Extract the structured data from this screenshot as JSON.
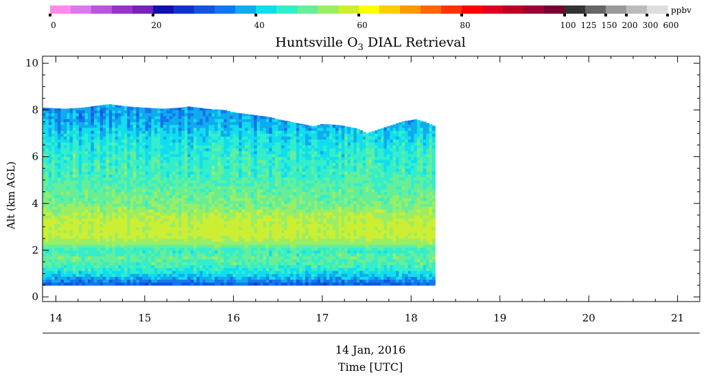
{
  "chart_data": {
    "type": "heatmap",
    "title_main": "Huntsville O",
    "title_sub": "3",
    "title_rest": " DIAL Retrieval",
    "ylabel": "Alt (km AGL)",
    "xlabel_date": "14 Jan, 2016",
    "xlabel": "Time [UTC]",
    "xlim": [
      13.85,
      21.25
    ],
    "ylim": [
      -0.2,
      10.3
    ],
    "x_ticks": [
      "14",
      "15",
      "16",
      "17",
      "18",
      "19",
      "20",
      "21"
    ],
    "y_ticks": [
      "0",
      "2",
      "4",
      "6",
      "8",
      "10"
    ],
    "data_extent": {
      "time_start": 13.85,
      "time_end": 18.27,
      "alt_bottom": 0.5,
      "top_profile_times": [
        13.85,
        14.1,
        14.3,
        14.5,
        14.6,
        14.8,
        15.0,
        15.2,
        15.4,
        15.5,
        15.7,
        15.9,
        16.0,
        16.2,
        16.4,
        16.5,
        16.7,
        16.9,
        17.0,
        17.2,
        17.4,
        17.5,
        17.7,
        17.9,
        18.05,
        18.15,
        18.27
      ],
      "top_profile_alts": [
        8.1,
        8.05,
        8.1,
        8.2,
        8.25,
        8.15,
        8.1,
        8.05,
        8.1,
        8.15,
        8.05,
        8.0,
        7.9,
        7.8,
        7.7,
        7.6,
        7.45,
        7.3,
        7.4,
        7.35,
        7.2,
        7.0,
        7.25,
        7.5,
        7.6,
        7.5,
        7.3
      ]
    },
    "altitude_layers_ppbv": {
      "alts": [
        0.5,
        0.8,
        1.1,
        1.4,
        1.7,
        2.0,
        2.3,
        2.6,
        3.0,
        3.5,
        4.0,
        4.5,
        5.0,
        5.5,
        6.0,
        6.5,
        7.0,
        7.5,
        8.0
      ],
      "ppbv": [
        30,
        38,
        44,
        48,
        50,
        46,
        54,
        57,
        57,
        56,
        51,
        50,
        48,
        47,
        46,
        44,
        42,
        38,
        37
      ]
    },
    "colorbar": {
      "unit": "ppbv",
      "labels": [
        "0",
        "20",
        "40",
        "60",
        "80",
        "100",
        "125",
        "150",
        "200",
        "300",
        "600"
      ],
      "colors": [
        "#ff88ee",
        "#dd77ee",
        "#bb55dd",
        "#9933cc",
        "#7722bb",
        "#1111aa",
        "#1133cc",
        "#1155dd",
        "#1177ee",
        "#11aaee",
        "#11ddee",
        "#33eecc",
        "#66ee99",
        "#99ee66",
        "#ccee33",
        "#ffff00",
        "#ffcc00",
        "#ff9900",
        "#ff6600",
        "#ff3300",
        "#ff0000",
        "#dd0022",
        "#bb0022",
        "#990033",
        "#770033",
        "#333333",
        "#666666",
        "#999999",
        "#bbbbbb",
        "#dddddd"
      ]
    }
  }
}
